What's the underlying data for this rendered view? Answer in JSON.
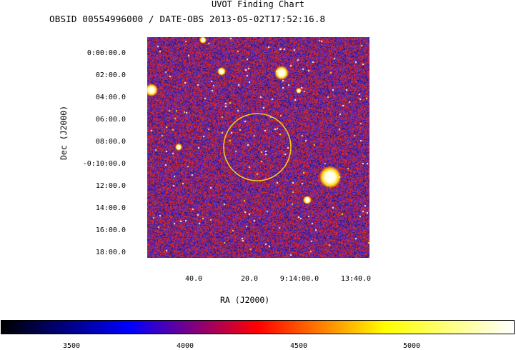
{
  "title": "UVOT Finding Chart",
  "subtitle": "OBSID 00554996000 / DATE-OBS 2013-05-02T17:52:16.8",
  "axes": {
    "dec_label": "Dec (J2000)",
    "ra_label": "RA (J2000)",
    "dec_ticks": [
      "0:00:00.0",
      "02:00.0",
      "04:00.0",
      "06:00.0",
      "08:00.0",
      "-0:10:00.0",
      "12:00.0",
      "14:00.0",
      "16:00.0",
      "18:00.0"
    ],
    "ra_ticks": [
      "40.0",
      "20.0",
      "9:14:00.0",
      "13:40.0"
    ]
  },
  "colorbar": {
    "ticks": [
      "3500",
      "4000",
      "4500",
      "5000"
    ],
    "colors": [
      "#000000",
      "#0000ff",
      "#ff0000",
      "#ffff00",
      "#ffffff"
    ]
  },
  "overlay": {
    "circle_color": "#f2c81a"
  }
}
